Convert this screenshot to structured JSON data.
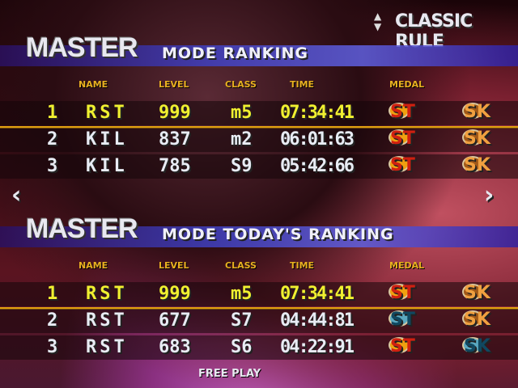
{
  "rule": {
    "label": "CLASSIC RULE",
    "icon": "up-down-arrows-icon"
  },
  "sections": [
    {
      "mode": "MASTER",
      "title": "MODE RANKING",
      "headers": {
        "name": "NAME",
        "level": "LEVEL",
        "class": "CLASS",
        "time": "TIME",
        "medal": "MEDAL"
      },
      "rows": [
        {
          "rank": "1",
          "name": "RST",
          "level": "999",
          "class": "m5",
          "time": "07:34:41",
          "medal1": "ST",
          "medal1_color": "gold",
          "medal2": "SK",
          "medal2_color": "bronze"
        },
        {
          "rank": "2",
          "name": "KIL",
          "level": "837",
          "class": "m2",
          "time": "06:01:63",
          "medal1": "ST",
          "medal1_color": "gold",
          "medal2": "SK",
          "medal2_color": "bronze"
        },
        {
          "rank": "3",
          "name": "KIL",
          "level": "785",
          "class": "S9",
          "time": "05:42:66",
          "medal1": "ST",
          "medal1_color": "gold",
          "medal2": "SK",
          "medal2_color": "bronze"
        }
      ]
    },
    {
      "mode": "MASTER",
      "title": "MODE TODAY'S RANKING",
      "headers": {
        "name": "NAME",
        "level": "LEVEL",
        "class": "CLASS",
        "time": "TIME",
        "medal": "MEDAL"
      },
      "rows": [
        {
          "rank": "1",
          "name": "RST",
          "level": "999",
          "class": "m5",
          "time": "07:34:41",
          "medal1": "ST",
          "medal1_color": "gold",
          "medal2": "SK",
          "medal2_color": "bronze"
        },
        {
          "rank": "2",
          "name": "RST",
          "level": "677",
          "class": "S7",
          "time": "04:44:81",
          "medal1": "ST",
          "medal1_color": "silver",
          "medal2": "SK",
          "medal2_color": "bronze"
        },
        {
          "rank": "3",
          "name": "RST",
          "level": "683",
          "class": "S6",
          "time": "04:22:91",
          "medal1": "ST",
          "medal1_color": "gold",
          "medal2": "SK",
          "medal2_color": "silver"
        }
      ]
    }
  ],
  "nav": {
    "left": "‹",
    "right": "›"
  },
  "footer": "FREE PLAY"
}
